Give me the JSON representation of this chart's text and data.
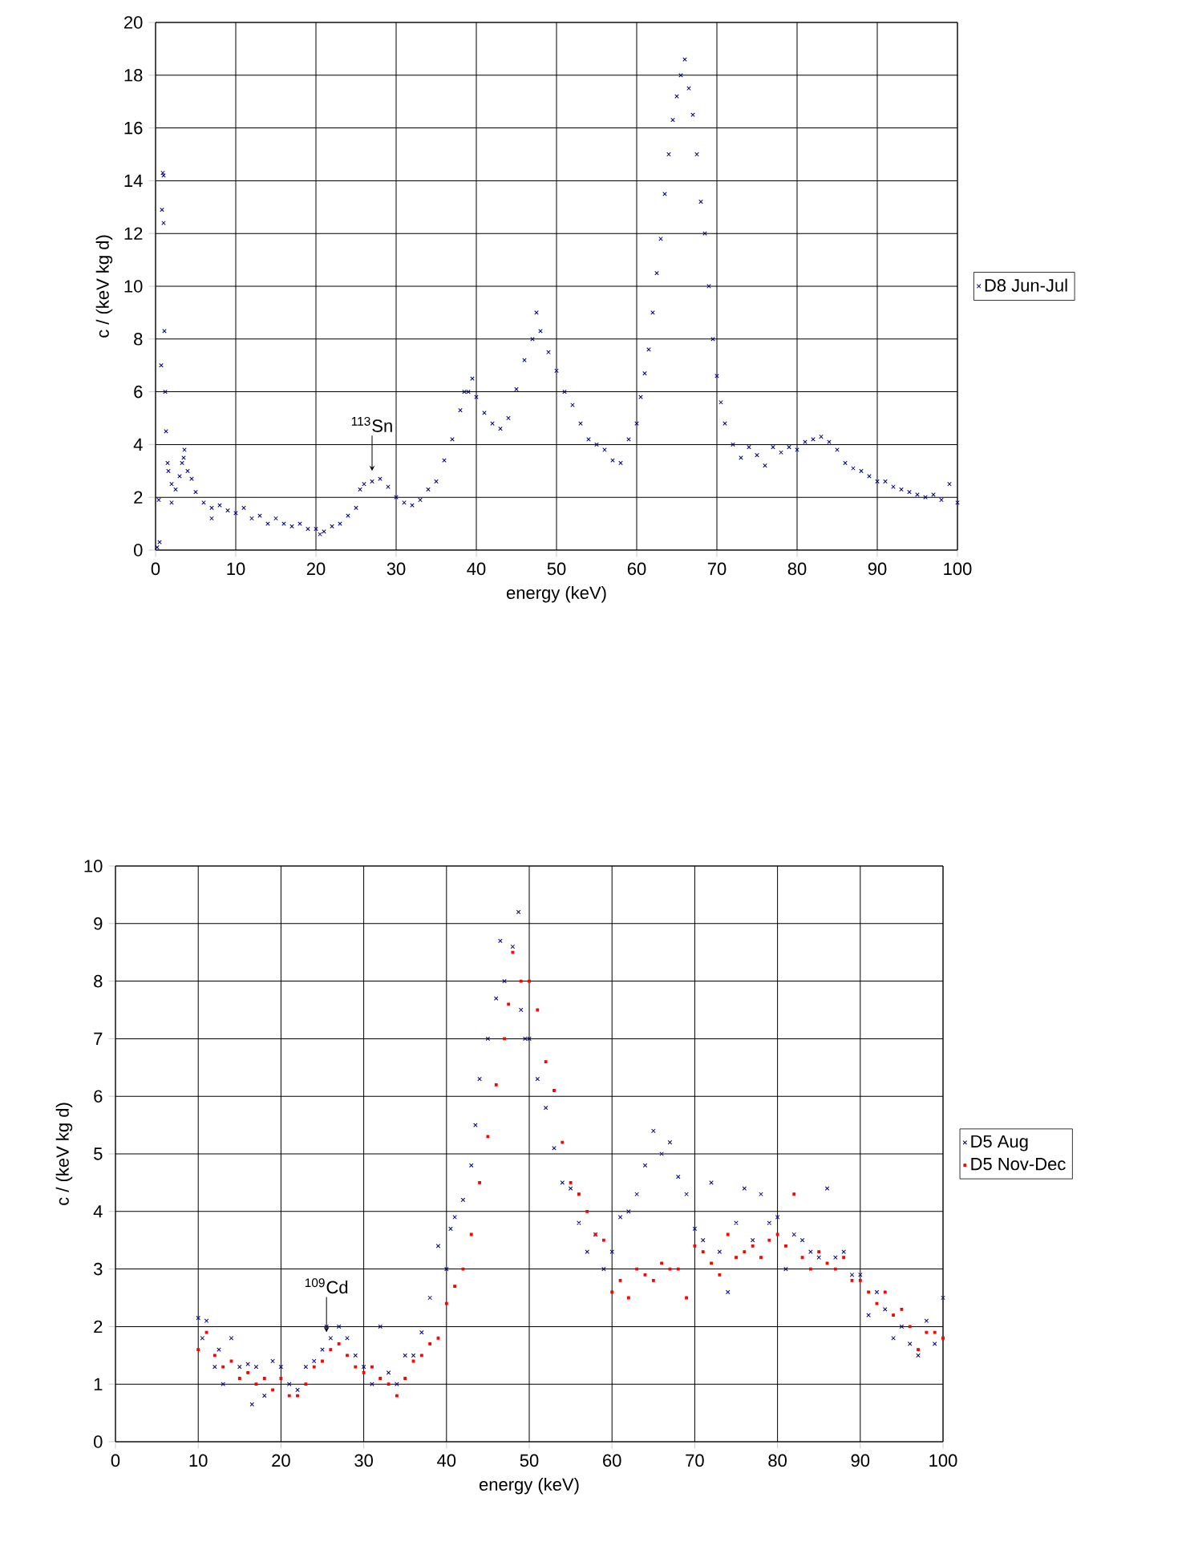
{
  "chart_data": [
    {
      "type": "scatter",
      "xlabel": "energy (keV)",
      "ylabel": "c / (keV kg d)",
      "xlim": [
        0,
        100
      ],
      "ylim": [
        0,
        20
      ],
      "xticks": [
        0,
        10,
        20,
        30,
        40,
        50,
        60,
        70,
        80,
        90,
        100
      ],
      "yticks": [
        0,
        2,
        4,
        6,
        8,
        10,
        12,
        14,
        16,
        18,
        20
      ],
      "grid": true,
      "legend": "right",
      "marker": "cross",
      "annotations": [
        {
          "text": "$^{113}$Sn",
          "x": 27,
          "y": 3
        }
      ],
      "series": [
        {
          "name": "D8 Jun-Jul",
          "color": "#000080",
          "x": [
            0.2,
            0.5,
            0.4,
            0.7,
            0.8,
            0.9,
            1.0,
            1.0,
            1.1,
            1.2,
            1.3,
            1.5,
            1.6,
            2,
            2,
            2.5,
            3,
            3.3,
            3.5,
            3.6,
            4,
            4.5,
            5,
            6,
            7,
            7,
            8,
            9,
            10,
            11,
            12,
            13,
            14,
            15,
            16,
            17,
            18,
            19,
            20,
            20.5,
            21,
            22,
            23,
            24,
            25,
            25.5,
            26,
            27,
            28,
            29,
            30,
            31,
            32,
            33,
            34,
            35,
            36,
            37,
            38,
            38.5,
            39,
            39.5,
            40,
            41,
            42,
            43,
            44,
            45,
            46,
            47,
            47.5,
            48,
            49,
            50,
            51,
            52,
            53,
            54,
            55,
            56,
            57,
            58,
            59,
            60,
            60.5,
            61,
            61.5,
            62,
            62.5,
            63,
            63.5,
            64,
            64.5,
            65,
            65.5,
            66,
            66.5,
            67,
            67.5,
            68,
            68.5,
            69,
            69.5,
            70,
            70.5,
            71,
            72,
            73,
            74,
            75,
            76,
            77,
            78,
            79,
            80,
            81,
            82,
            83,
            84,
            85,
            86,
            87,
            88,
            89,
            90,
            91,
            92,
            93,
            94,
            95,
            96,
            97,
            98,
            99,
            100
          ],
          "values": [
            0.1,
            0.3,
            1.9,
            7.0,
            12.9,
            14.3,
            14.2,
            12.4,
            8.3,
            6.0,
            4.5,
            3.3,
            3.0,
            2.5,
            1.8,
            2.3,
            2.8,
            3.3,
            3.5,
            3.8,
            3.0,
            2.7,
            2.2,
            1.8,
            1.6,
            1.2,
            1.7,
            1.5,
            1.4,
            1.6,
            1.2,
            1.3,
            1.0,
            1.2,
            1.0,
            0.9,
            1.0,
            0.8,
            0.8,
            0.6,
            0.7,
            0.9,
            1.0,
            1.3,
            1.6,
            2.3,
            2.5,
            2.6,
            2.7,
            2.4,
            2.0,
            1.8,
            1.7,
            1.9,
            2.3,
            2.6,
            3.4,
            4.2,
            5.3,
            6.0,
            6.0,
            6.5,
            5.8,
            5.2,
            4.8,
            4.6,
            5.0,
            6.1,
            7.2,
            8.0,
            9.0,
            8.3,
            7.5,
            6.8,
            6.0,
            5.5,
            4.8,
            4.2,
            4.0,
            3.8,
            3.4,
            3.3,
            4.2,
            4.8,
            5.8,
            6.7,
            7.6,
            9.0,
            10.5,
            11.8,
            13.5,
            15.0,
            16.3,
            17.2,
            18.0,
            18.6,
            17.5,
            16.5,
            15.0,
            13.2,
            12.0,
            10.0,
            8.0,
            6.6,
            5.6,
            4.8,
            4.0,
            3.5,
            3.9,
            3.6,
            3.2,
            3.9,
            3.7,
            3.9,
            3.8,
            4.1,
            4.2,
            4.3,
            4.1,
            3.8,
            3.3,
            3.1,
            3.0,
            2.8,
            2.6,
            2.6,
            2.4,
            2.3,
            2.2,
            2.1,
            2.0,
            2.1,
            1.9,
            2.5,
            1.8
          ]
        }
      ]
    },
    {
      "type": "scatter",
      "xlabel": "energy (keV)",
      "ylabel": "c / (keV kg d)",
      "xlim": [
        0,
        100
      ],
      "ylim": [
        0,
        10
      ],
      "xticks": [
        0,
        10,
        20,
        30,
        40,
        50,
        60,
        70,
        80,
        90,
        100
      ],
      "yticks": [
        0,
        1,
        2,
        3,
        4,
        5,
        6,
        7,
        8,
        9,
        10
      ],
      "grid": true,
      "legend": "right",
      "annotations": [
        {
          "text": "$^{109}$Cd",
          "x": 25.5,
          "y": 1.9
        }
      ],
      "series": [
        {
          "name": "D5 Aug",
          "color": "#000080",
          "marker": "cross",
          "x": [
            10,
            10.5,
            11,
            12,
            12.5,
            13,
            14,
            15,
            16,
            16.5,
            17,
            18,
            19,
            20,
            21,
            22,
            23,
            24,
            25,
            25.5,
            26,
            27,
            28,
            29,
            30,
            31,
            32,
            33,
            34,
            35,
            36,
            37,
            38,
            39,
            40,
            40.5,
            41,
            42,
            43,
            43.5,
            44,
            45,
            46,
            46.5,
            47,
            48,
            48.7,
            49,
            49.5,
            50,
            51,
            52,
            53,
            54,
            55,
            56,
            57,
            58,
            59,
            60,
            61,
            62,
            63,
            64,
            65,
            66,
            67,
            68,
            69,
            70,
            71,
            72,
            73,
            74,
            75,
            76,
            77,
            78,
            79,
            80,
            81,
            82,
            83,
            84,
            85,
            86,
            87,
            88,
            89,
            90,
            91,
            92,
            93,
            94,
            95,
            96,
            97,
            98,
            99,
            100
          ],
          "values": [
            2.15,
            1.8,
            2.1,
            1.3,
            1.6,
            1.0,
            1.8,
            1.3,
            1.35,
            0.65,
            1.3,
            0.8,
            1.4,
            1.3,
            1.0,
            0.9,
            1.3,
            1.4,
            1.6,
            2.0,
            1.8,
            2.0,
            1.8,
            1.5,
            1.3,
            1.0,
            2.0,
            1.2,
            1.0,
            1.5,
            1.5,
            1.9,
            2.5,
            3.4,
            3.0,
            3.7,
            3.9,
            4.2,
            4.8,
            5.5,
            6.3,
            7.0,
            7.7,
            8.7,
            8.0,
            8.6,
            9.2,
            7.5,
            7.0,
            7.0,
            6.3,
            5.8,
            5.1,
            4.5,
            4.4,
            3.8,
            3.3,
            3.6,
            3.0,
            3.3,
            3.9,
            4.0,
            4.3,
            4.8,
            5.4,
            5.0,
            5.2,
            4.6,
            4.3,
            3.7,
            3.5,
            4.5,
            3.3,
            2.6,
            3.8,
            4.4,
            3.5,
            4.3,
            3.8,
            3.9,
            3.0,
            3.6,
            3.5,
            3.3,
            3.2,
            4.4,
            3.2,
            3.3,
            2.9,
            2.9,
            2.2,
            2.6,
            2.3,
            1.8,
            2.0,
            1.7,
            1.5,
            2.1,
            1.7,
            2.5
          ]
        },
        {
          "name": "D5 Nov-Dec",
          "color": "#ff0000",
          "marker": "square",
          "x": [
            10,
            11,
            12,
            13,
            14,
            15,
            16,
            17,
            18,
            19,
            20,
            21,
            22,
            23,
            24,
            25,
            26,
            27,
            28,
            29,
            30,
            31,
            32,
            33,
            34,
            35,
            36,
            37,
            38,
            39,
            40,
            41,
            42,
            43,
            44,
            45,
            46,
            47,
            47.5,
            48,
            49,
            50,
            51,
            52,
            53,
            54,
            55,
            56,
            57,
            58,
            59,
            60,
            61,
            62,
            63,
            64,
            65,
            66,
            67,
            68,
            69,
            70,
            71,
            72,
            73,
            74,
            75,
            76,
            77,
            78,
            79,
            80,
            81,
            82,
            83,
            84,
            85,
            86,
            87,
            88,
            89,
            90,
            91,
            92,
            93,
            94,
            95,
            96,
            97,
            98,
            99,
            100
          ],
          "values": [
            1.6,
            1.9,
            1.5,
            1.3,
            1.4,
            1.1,
            1.2,
            1.0,
            1.1,
            0.9,
            1.1,
            0.8,
            0.8,
            1.0,
            1.3,
            1.4,
            1.6,
            1.7,
            1.5,
            1.3,
            1.2,
            1.3,
            1.1,
            1.0,
            0.8,
            1.1,
            1.4,
            1.5,
            1.7,
            1.8,
            2.4,
            2.7,
            3.0,
            3.6,
            4.5,
            5.3,
            6.2,
            7.0,
            7.6,
            8.5,
            8.0,
            8.0,
            7.5,
            6.6,
            6.1,
            5.2,
            4.5,
            4.3,
            4.0,
            3.6,
            3.5,
            2.6,
            2.8,
            2.5,
            3.0,
            2.9,
            2.8,
            3.1,
            3.0,
            3.0,
            2.5,
            3.4,
            3.3,
            3.1,
            2.9,
            3.6,
            3.2,
            3.3,
            3.4,
            3.2,
            3.5,
            3.6,
            3.4,
            4.3,
            3.2,
            3.0,
            3.3,
            3.1,
            3.0,
            3.2,
            2.8,
            2.8,
            2.6,
            2.4,
            2.6,
            2.2,
            2.3,
            2.0,
            1.6,
            1.9,
            1.9,
            1.8
          ]
        }
      ]
    }
  ]
}
